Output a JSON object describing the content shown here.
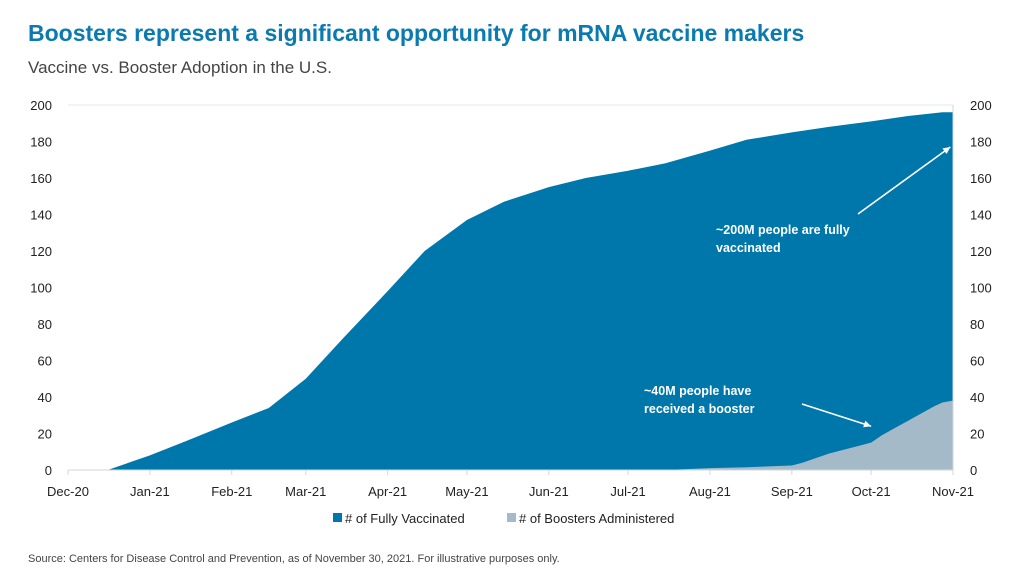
{
  "title": "Boosters represent a significant opportunity for mRNA vaccine makers",
  "subtitle": "Vaccine vs. Booster Adoption in the U.S.",
  "source": "Source: Centers for Disease Control and Prevention, as of November 30, 2021. For illustrative purposes only.",
  "chart_data": {
    "type": "area",
    "xlim": [
      "2020-12-01",
      "2021-11-01"
    ],
    "ylim": [
      0,
      200
    ],
    "yticks": [
      0,
      20,
      40,
      60,
      80,
      100,
      120,
      140,
      160,
      180,
      200
    ],
    "secondary_yticks": [
      0,
      20,
      40,
      60,
      80,
      100,
      120,
      140,
      160,
      180,
      200
    ],
    "xticks": [
      {
        "date": "2020-12-01",
        "label": "Dec-20"
      },
      {
        "date": "2021-01-01",
        "label": "Jan-21"
      },
      {
        "date": "2021-02-01",
        "label": "Feb-21"
      },
      {
        "date": "2021-03-01",
        "label": "Mar-21"
      },
      {
        "date": "2021-04-01",
        "label": "Apr-21"
      },
      {
        "date": "2021-05-01",
        "label": "May-21"
      },
      {
        "date": "2021-06-01",
        "label": "Jun-21"
      },
      {
        "date": "2021-07-01",
        "label": "Jul-21"
      },
      {
        "date": "2021-08-01",
        "label": "Aug-21"
      },
      {
        "date": "2021-09-01",
        "label": "Sep-21"
      },
      {
        "date": "2021-10-01",
        "label": "Oct-21"
      },
      {
        "date": "2021-11-01",
        "label": "Nov-21"
      }
    ],
    "grid": false,
    "legend_placement": "bottom",
    "series": [
      {
        "name": "# of Fully Vaccinated",
        "color": "#0077ab",
        "points": [
          [
            "2020-12-16",
            0
          ],
          [
            "2021-01-01",
            8
          ],
          [
            "2021-01-15",
            16
          ],
          [
            "2021-02-01",
            26
          ],
          [
            "2021-02-15",
            34
          ],
          [
            "2021-03-01",
            50
          ],
          [
            "2021-03-15",
            72
          ],
          [
            "2021-04-01",
            98
          ],
          [
            "2021-04-15",
            120
          ],
          [
            "2021-05-01",
            137
          ],
          [
            "2021-05-15",
            147
          ],
          [
            "2021-06-01",
            155
          ],
          [
            "2021-06-15",
            160
          ],
          [
            "2021-07-01",
            164
          ],
          [
            "2021-07-15",
            168
          ],
          [
            "2021-08-01",
            175
          ],
          [
            "2021-08-15",
            181
          ],
          [
            "2021-09-01",
            185
          ],
          [
            "2021-09-15",
            188
          ],
          [
            "2021-10-01",
            191
          ],
          [
            "2021-10-15",
            194
          ],
          [
            "2021-10-28",
            196
          ],
          [
            "2021-11-01",
            196
          ]
        ]
      },
      {
        "name": "# of Boosters Administered",
        "color": "#a5bac9",
        "points": [
          [
            "2021-07-15",
            0
          ],
          [
            "2021-08-01",
            1
          ],
          [
            "2021-08-15",
            1.5
          ],
          [
            "2021-09-01",
            2.5
          ],
          [
            "2021-09-05",
            4
          ],
          [
            "2021-09-15",
            9
          ],
          [
            "2021-10-01",
            15
          ],
          [
            "2021-10-05",
            19
          ],
          [
            "2021-10-15",
            27
          ],
          [
            "2021-10-25",
            35
          ],
          [
            "2021-10-28",
            37
          ],
          [
            "2021-11-01",
            38
          ]
        ]
      }
    ],
    "annotations": [
      {
        "lines": [
          "~200M people are fully",
          "vaccinated"
        ],
        "points_to": [
          "2021-10-31",
          177
        ]
      },
      {
        "lines": [
          "~40M people have",
          "received a booster"
        ],
        "points_to": [
          "2021-10-01",
          24
        ]
      }
    ]
  }
}
